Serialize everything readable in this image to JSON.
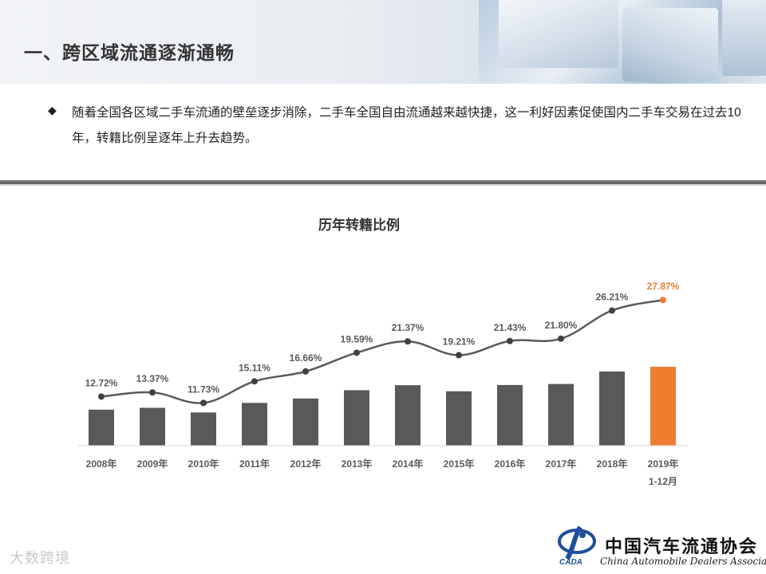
{
  "header": {
    "title": "一、跨区域流通逐渐通畅"
  },
  "bullet": {
    "marker": "◆",
    "text": "随着全国各区域二手车流通的壁垒逐步消除，二手车全国自由流通越来越快捷，这一利好因素促使国内二手车交易在过去10年，转籍比例呈逐年上升去趋势。"
  },
  "colors": {
    "bar": "#595959",
    "highlight": "#ED7D31",
    "line": "#595959",
    "header_bg": "#e9edf2"
  },
  "chart_data": {
    "type": "bar",
    "title": "历年转籍比例",
    "xlabel": "",
    "ylabel": "",
    "categories": [
      "2008年",
      "2009年",
      "2010年",
      "2011年",
      "2012年",
      "2013年",
      "2014年",
      "2015年",
      "2016年",
      "2017年",
      "2018年",
      "2019年\n1-12月"
    ],
    "series": [
      {
        "values": [
          12.72,
          13.37,
          11.73,
          15.11,
          16.66,
          19.59,
          21.37,
          19.21,
          21.43,
          21.8,
          26.21,
          27.87
        ]
      }
    ],
    "data_labels": [
      "12.72%",
      "13.37%",
      "11.73%",
      "15.11%",
      "16.66%",
      "19.59%",
      "21.37%",
      "19.21%",
      "21.43%",
      "21.80%",
      "26.21%",
      "27.87%"
    ],
    "highlight_index": 11,
    "overlay": "smoothed line with markers over bars",
    "grid": false,
    "legend": "none"
  },
  "footer": {
    "watermark": "大数跨境",
    "org_name_cn": "中国汽车流通协会",
    "org_name_en": "China Automobile Dealers Association",
    "org_abbr": "CADA"
  }
}
